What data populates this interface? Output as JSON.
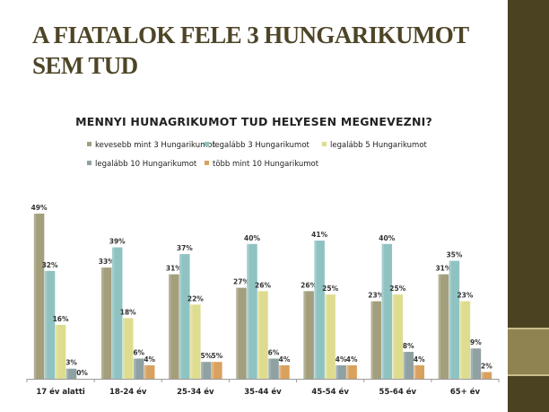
{
  "slide": {
    "title": "A FIATALOK FELE 3 HUNGARIKUMOT SEM TUD"
  },
  "colors": {
    "side_strip": "#4a4220",
    "side_accent": "#8f8352"
  },
  "chart_data": {
    "type": "bar",
    "title": "MENNYI HUNAGRIKUMOT TUD HELYESEN MEGNEVEZNI?",
    "xlabel": "",
    "ylabel": "",
    "ylim": [
      0,
      50
    ],
    "grid": false,
    "legend_position": "top",
    "categories": [
      "17 év alatti",
      "18-24 év",
      "25-34 év",
      "35-44 év",
      "45-54 év",
      "55-64 év",
      "65+ év"
    ],
    "series": [
      {
        "name": "kevesebb mint 3 Hungarikumot",
        "color": "#a39f7d",
        "values": [
          49,
          33,
          31,
          27,
          26,
          23,
          31
        ]
      },
      {
        "name": "legalább 3 Hungarikumot",
        "color": "#8fc3c2",
        "values": [
          32,
          39,
          37,
          40,
          41,
          40,
          35
        ]
      },
      {
        "name": "legalább 5 Hungarikumot",
        "color": "#dedc8f",
        "values": [
          16,
          18,
          22,
          26,
          25,
          25,
          23
        ]
      },
      {
        "name": "legalább 10 Hungarikumot",
        "color": "#8fa1a3",
        "values": [
          3,
          6,
          5,
          6,
          4,
          8,
          9
        ]
      },
      {
        "name": "több mint 10 Hungarikumot",
        "color": "#d9a15e",
        "values": [
          0,
          4,
          5,
          4,
          4,
          4,
          2
        ]
      }
    ],
    "value_suffix": "%"
  }
}
